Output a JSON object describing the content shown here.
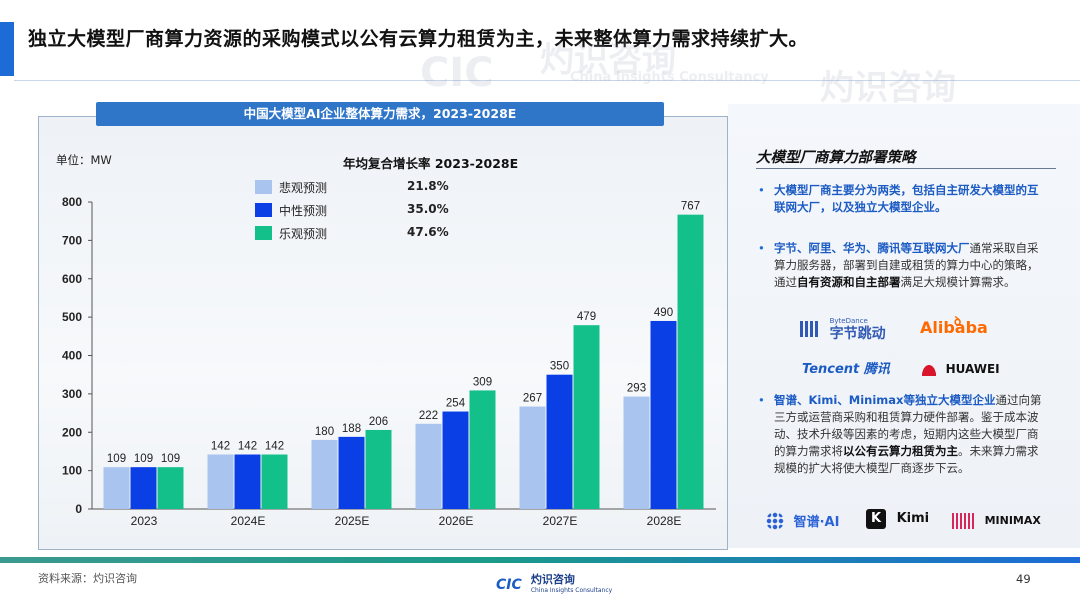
{
  "header": {
    "title": "独立大模型厂商算力资源的采购模式以公有云算力租赁为主，未来整体算力需求持续扩大。"
  },
  "chart": {
    "banner": "中国大模型AI企业整体算力需求，2023-2028E",
    "unit": "单位：MW",
    "cagr_title": "年均复合增长率 2023-2028E"
  },
  "chart_data": {
    "type": "bar",
    "categories": [
      "2023",
      "2024E",
      "2025E",
      "2026E",
      "2027E",
      "2028E"
    ],
    "series": [
      {
        "name": "悲观预测",
        "cagr": "21.8%",
        "color": "#a9c4ee",
        "values": [
          109,
          142,
          180,
          222,
          267,
          293
        ]
      },
      {
        "name": "中性预测",
        "cagr": "35.0%",
        "color": "#0a3fe6",
        "values": [
          109,
          142,
          188,
          254,
          350,
          490
        ]
      },
      {
        "name": "乐观预测",
        "cagr": "47.6%",
        "color": "#13c08a",
        "values": [
          109,
          142,
          206,
          309,
          479,
          767
        ]
      }
    ],
    "ylim": [
      0,
      800
    ],
    "yticks": [
      0,
      100,
      200,
      300,
      400,
      500,
      600,
      700,
      800
    ],
    "legend_position": "top-left"
  },
  "strategy": {
    "title": "大模型厂商算力部署策略",
    "bullet1": {
      "marker": "•",
      "text": "大模型厂商主要分为两类，包括自主研发大模型的互联网大厂，以及独立大模型企业。"
    },
    "bullet2": {
      "marker": "•",
      "part1": "字节、阿里、华为、腾讯等互联网大厂",
      "part2": "通常采取自采算力服务器，部署到自建或租赁的算力中心的策略，通过",
      "part3": "自有资源和自主部署",
      "part4": "满足大规模计算需求。"
    },
    "bullet3": {
      "marker": "•",
      "part1": "智谱、Kimi、Minimax等独立大模型企业",
      "part2": "通过向第三方或运营商采购和租赁算力硬件部署。鉴于成本波动、技术升级等因素的考虑，短期内这些大模型厂商的算力需求将",
      "part3": "以公有云算力租赁为主",
      "part4": "。未来算力需求规模的扩大将使大模型厂商逐步下云。"
    },
    "logos": {
      "bytedance_small": "ByteDance",
      "bytedance": "字节跳动",
      "alibaba": "Alibaba",
      "tencent": "Tencent 腾讯",
      "huawei": "HUAWEI",
      "zhipu": "智谱·AI",
      "kimi": "Kimi",
      "minimax": "MINIMAX"
    }
  },
  "watermark": {
    "cn": "灼识咨询",
    "en": "China Insights Consultancy",
    "abbr": "CIC"
  },
  "footer": {
    "source": "资料来源：灼识咨询",
    "logo_abbr": "CIC",
    "logo_cn": "灼识咨询",
    "logo_en": "China Insights Consultancy",
    "page": "49"
  }
}
